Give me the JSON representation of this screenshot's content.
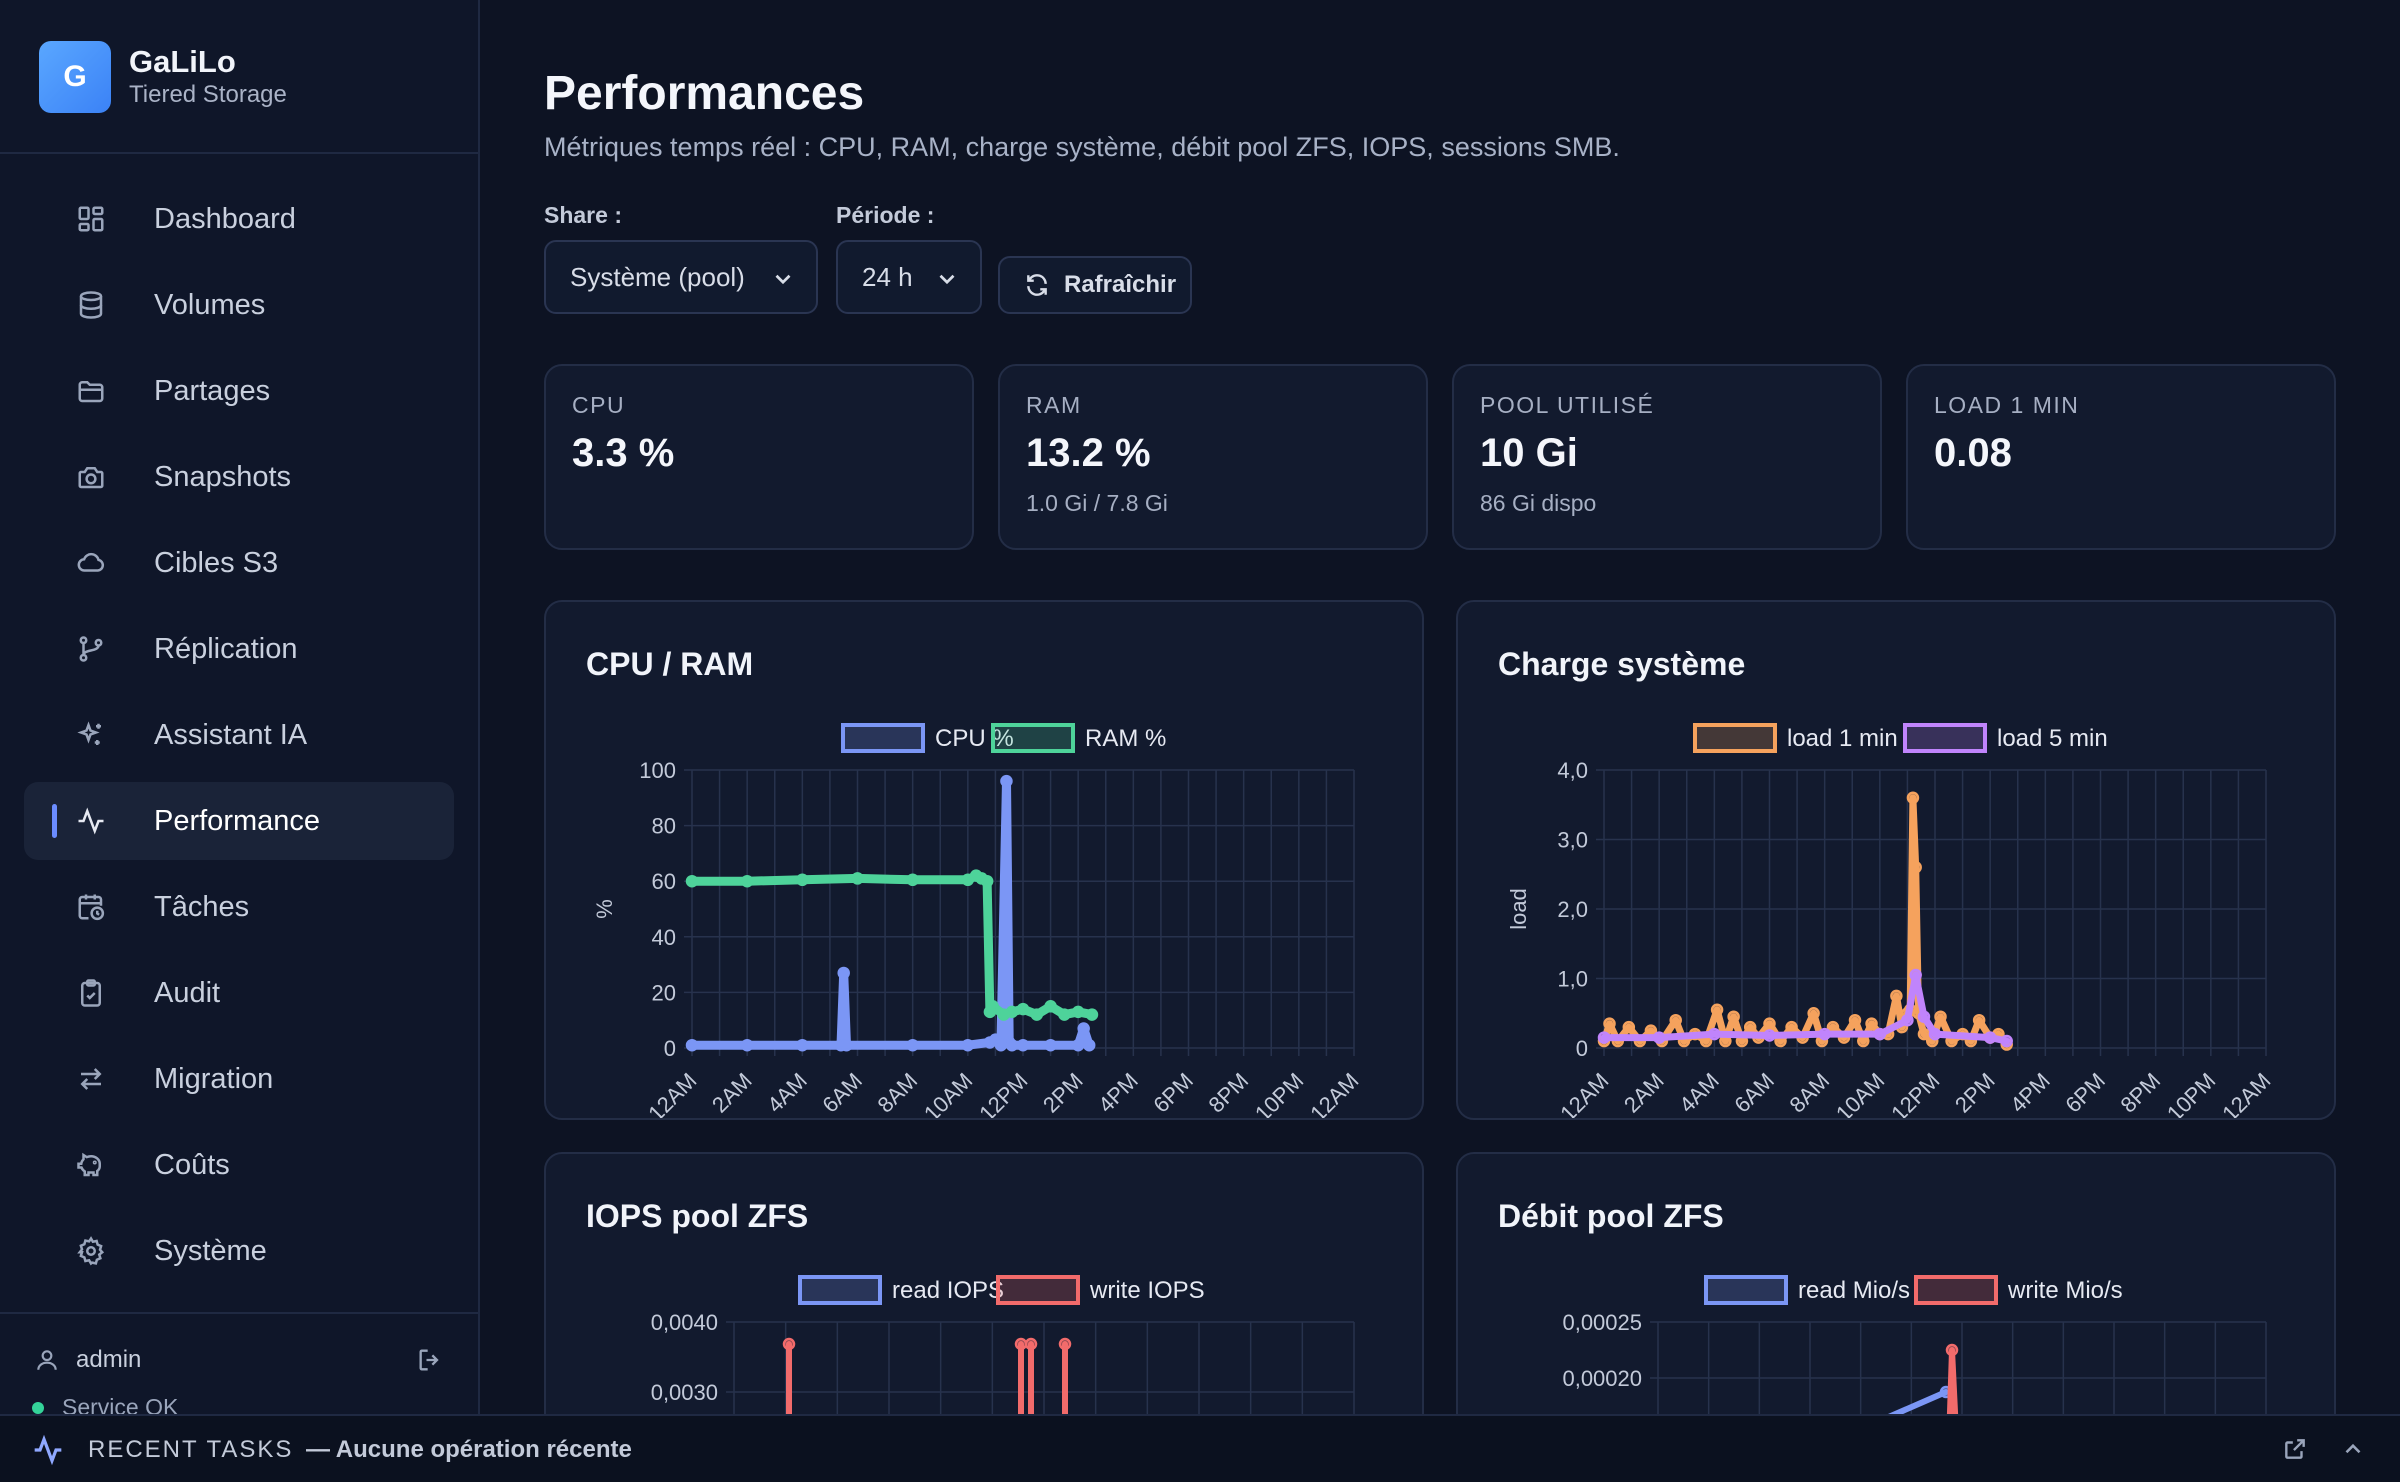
{
  "brand": {
    "logo_letter": "G",
    "name": "GaLiLo",
    "subtitle": "Tiered Storage"
  },
  "sidebar": {
    "items": [
      {
        "label": "Dashboard",
        "icon": "grid-icon"
      },
      {
        "label": "Volumes",
        "icon": "database-icon"
      },
      {
        "label": "Partages",
        "icon": "folder-icon"
      },
      {
        "label": "Snapshots",
        "icon": "camera-icon"
      },
      {
        "label": "Cibles S3",
        "icon": "cloud-icon"
      },
      {
        "label": "Réplication",
        "icon": "git-branch-icon"
      },
      {
        "label": "Assistant IA",
        "icon": "sparkles-icon"
      },
      {
        "label": "Performance",
        "icon": "activity-icon",
        "active": true
      },
      {
        "label": "Tâches",
        "icon": "calendar-clock-icon"
      },
      {
        "label": "Audit",
        "icon": "clipboard-check-icon"
      },
      {
        "label": "Migration",
        "icon": "arrows-exchange-icon"
      },
      {
        "label": "Coûts",
        "icon": "piggy-bank-icon"
      },
      {
        "label": "Système",
        "icon": "gear-icon"
      }
    ],
    "user": "admin",
    "service_status": "Service OK"
  },
  "header": {
    "title": "Performances",
    "subtitle": "Métriques temps réel : CPU, RAM, charge système, débit pool ZFS, IOPS, sessions SMB."
  },
  "filters": {
    "share_label": "Share :",
    "share_value": "Système (pool)",
    "period_label": "Période :",
    "period_value": "24 h",
    "refresh_label": "Rafraîchir"
  },
  "stats": [
    {
      "key": "CPU",
      "value": "3.3 %",
      "sub": ""
    },
    {
      "key": "RAM",
      "value": "13.2 %",
      "sub": "1.0 Gi / 7.8 Gi"
    },
    {
      "key": "POOL UTILISÉ",
      "value": "10 Gi",
      "sub": "86 Gi dispo"
    },
    {
      "key": "LOAD 1 MIN",
      "value": "0.08",
      "sub": ""
    }
  ],
  "colors": {
    "accent": "#6b8cff",
    "cpu": "#7b96f5",
    "ram": "#4ed39a",
    "load1": "#f5a25d",
    "load5": "#c084fc",
    "read": "#7b96f5",
    "write": "#f26b6b",
    "grid": "#27324d"
  },
  "chart_data": [
    {
      "type": "line",
      "title": "CPU / RAM",
      "ylabel": "%",
      "ylim": [
        0,
        100
      ],
      "yticks": [
        "0",
        "20",
        "40",
        "60",
        "80",
        "100"
      ],
      "x_ticks": [
        "12AM",
        "2AM",
        "4AM",
        "6AM",
        "8AM",
        "10AM",
        "12PM",
        "2PM",
        "4PM",
        "6PM",
        "8PM",
        "10PM",
        "12AM"
      ],
      "series": [
        {
          "name": "CPU %",
          "color": "#7b96f5",
          "x": [
            0,
            2,
            4,
            5.4,
            5.5,
            5.6,
            8,
            10,
            10.8,
            11,
            11.2,
            11.4,
            11.5,
            11.6,
            12,
            13,
            14,
            14.2,
            14.4
          ],
          "y": [
            1,
            1,
            1,
            1,
            27,
            1,
            1,
            1,
            2,
            3,
            1,
            96,
            2,
            1,
            1,
            1,
            1,
            7,
            1
          ]
        },
        {
          "name": "RAM %",
          "color": "#4ed39a",
          "x": [
            0,
            2,
            4,
            6,
            8,
            10,
            10.3,
            10.5,
            10.7,
            10.8,
            10.9,
            11.3,
            11.6,
            12,
            12.5,
            13,
            13.5,
            14,
            14.5
          ],
          "y": [
            60,
            60,
            60.5,
            61,
            60.5,
            60.5,
            62,
            61,
            60,
            13,
            15,
            12,
            13,
            14,
            12,
            15,
            12,
            13,
            12
          ]
        }
      ]
    },
    {
      "type": "line",
      "title": "Charge système",
      "ylabel": "load",
      "ylim": [
        0,
        4
      ],
      "yticks": [
        "0",
        "1,0",
        "2,0",
        "3,0",
        "4,0"
      ],
      "x_ticks": [
        "12AM",
        "2AM",
        "4AM",
        "6AM",
        "8AM",
        "10AM",
        "12PM",
        "2PM",
        "4PM",
        "6PM",
        "8PM",
        "10PM",
        "12AM"
      ],
      "series": [
        {
          "name": "load 1 min",
          "color": "#f5a25d",
          "x": [
            0,
            0.2,
            0.5,
            0.9,
            1.3,
            1.7,
            2.1,
            2.6,
            2.9,
            3.3,
            3.7,
            4.1,
            4.4,
            4.7,
            5.0,
            5.3,
            5.6,
            6.0,
            6.4,
            6.8,
            7.2,
            7.6,
            7.9,
            8.3,
            8.7,
            9.1,
            9.4,
            9.7,
            10.0,
            10.3,
            10.6,
            10.8,
            11.0,
            11.1,
            11.2,
            11.3,
            11.4,
            11.6,
            11.9,
            12.2,
            12.6,
            13.0,
            13.3,
            13.6,
            14.0,
            14.3,
            14.6
          ],
          "y": [
            0.1,
            0.35,
            0.1,
            0.3,
            0.1,
            0.25,
            0.1,
            0.4,
            0.1,
            0.2,
            0.1,
            0.55,
            0.1,
            0.45,
            0.1,
            0.3,
            0.15,
            0.35,
            0.1,
            0.3,
            0.15,
            0.5,
            0.1,
            0.3,
            0.15,
            0.4,
            0.1,
            0.35,
            0.2,
            0.2,
            0.75,
            0.3,
            0.5,
            0.55,
            3.6,
            2.6,
            0.5,
            0.2,
            0.1,
            0.45,
            0.1,
            0.2,
            0.1,
            0.4,
            0.15,
            0.2,
            0.05
          ]
        },
        {
          "name": "load 5 min",
          "color": "#c084fc",
          "x": [
            0,
            2,
            4,
            6,
            8,
            10,
            11,
            11.3,
            11.6,
            12,
            14,
            14.6
          ],
          "y": [
            0.15,
            0.15,
            0.2,
            0.18,
            0.2,
            0.2,
            0.4,
            1.05,
            0.45,
            0.2,
            0.15,
            0.1
          ]
        }
      ]
    },
    {
      "type": "line",
      "title": "IOPS pool ZFS",
      "yticks": [
        "0,0030",
        "0,0040"
      ],
      "series": [
        {
          "name": "read IOPS",
          "color": "#7b96f5",
          "x": [],
          "y": []
        },
        {
          "name": "write IOPS",
          "color": "#f26b6b",
          "x": [],
          "y": []
        }
      ]
    },
    {
      "type": "line",
      "title": "Débit pool ZFS",
      "yticks": [
        "0,00020",
        "0,00025"
      ],
      "series": [
        {
          "name": "read Mio/s",
          "color": "#7b96f5",
          "x": [],
          "y": []
        },
        {
          "name": "write Mio/s",
          "color": "#f26b6b",
          "x": [],
          "y": []
        }
      ]
    }
  ],
  "bottombar": {
    "title": "RECENT TASKS",
    "message": "— Aucune opération récente"
  }
}
